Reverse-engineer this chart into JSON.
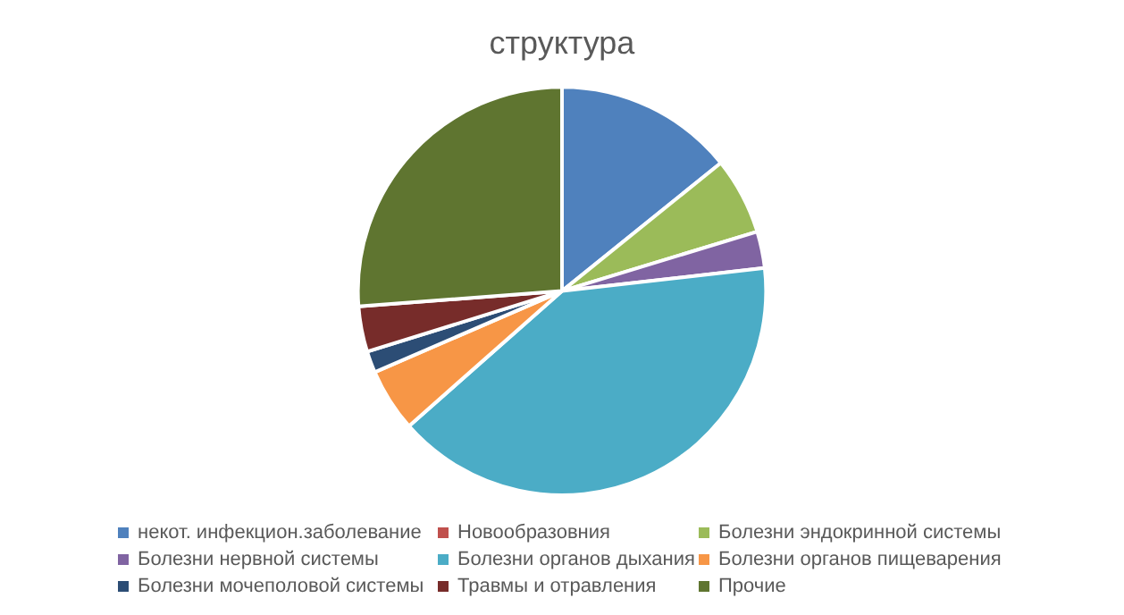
{
  "chart_data": {
    "type": "pie",
    "title": "структура",
    "categories": [
      "некот. инфекцион.заболевание",
      "Новообразовния",
      "Болезни эндокринной системы",
      "Болезни нервной системы",
      "Болезни органов дыхания",
      "Болезни органов пищеварения",
      "Болезни мочеполовой системы",
      "Травмы и отравления",
      "Прочие"
    ],
    "values": [
      14.2,
      0,
      6.1,
      2.9,
      40.3,
      5,
      1.7,
      3.6,
      26.2
    ],
    "colors": [
      "#4f81bd",
      "#c0504d",
      "#9bbb59",
      "#8064a2",
      "#4bacc6",
      "#f79646",
      "#2c4d75",
      "#772c2a",
      "#5f7530"
    ],
    "legend": "bottom"
  }
}
